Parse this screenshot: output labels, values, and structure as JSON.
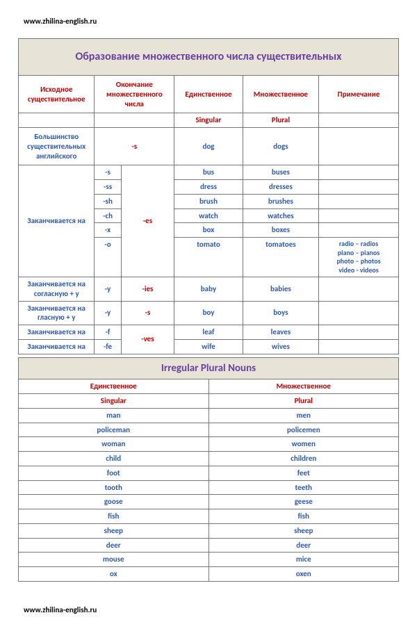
{
  "url": "www.zhilina-english.ru",
  "main_title": "Образование множественного числа существительных",
  "headers": {
    "source": "Исходное существительное",
    "ending": "Окончание множественного числа",
    "singular_ru": "Единственное",
    "plural_ru": "Множественное",
    "note": "Примечание",
    "singular_en": "Singular",
    "plural_en": "Plural"
  },
  "r1": {
    "label": "Большинство существительных английского",
    "ending": "-s",
    "sg": "dog",
    "pl": "dogs"
  },
  "es": {
    "label": "Заканчивается на",
    "ending": "-es",
    "s": {
      "suffix": "-s",
      "sg": "bus",
      "pl": "buses"
    },
    "ss": {
      "suffix": "-ss",
      "sg": "dress",
      "pl": "dresses"
    },
    "sh": {
      "suffix": "-sh",
      "sg": "brush",
      "pl": "brushes"
    },
    "ch": {
      "suffix": "-ch",
      "sg": "watch",
      "pl": "watches"
    },
    "x": {
      "suffix": "-x",
      "sg": "box",
      "pl": "boxes"
    },
    "o": {
      "suffix": "-o",
      "sg": "tomato",
      "pl": "tomatoes",
      "note1": "radio – radios",
      "note2": "piano – pianos",
      "note3": "photo – photos",
      "note4": "video - videos"
    }
  },
  "ies": {
    "label": "Заканчивается на согласную + y",
    "suffix": "-y",
    "ending": "-ies",
    "sg": "baby",
    "pl": "babies"
  },
  "ys": {
    "label": "Заканчивается на гласную + y",
    "suffix": "-y",
    "ending": "-s",
    "sg": "boy",
    "pl": "boys"
  },
  "f": {
    "label": "Заканчивается на",
    "suffix": "-f",
    "ending": "-ves",
    "sg": "leaf",
    "pl": "leaves"
  },
  "fe": {
    "label": "Заканчивается на",
    "suffix": "-fe",
    "sg": "wife",
    "pl": "wives"
  },
  "irr_title": "Irregular Plural Nouns",
  "irr_headers": {
    "sg_ru": "Единственное",
    "pl_ru": "Множественное",
    "sg_en": "Singular",
    "pl_en": "Plural"
  },
  "irr": [
    {
      "sg": "man",
      "pl": "men"
    },
    {
      "sg": "policeman",
      "pl": "policemen"
    },
    {
      "sg": "woman",
      "pl": "women"
    },
    {
      "sg": "child",
      "pl": "children"
    },
    {
      "sg": "foot",
      "pl": "feet"
    },
    {
      "sg": "tooth",
      "pl": "teeth"
    },
    {
      "sg": "goose",
      "pl": "geese"
    },
    {
      "sg": "fish",
      "pl": "fish"
    },
    {
      "sg": "sheep",
      "pl": "sheep"
    },
    {
      "sg": "deer",
      "pl": "deer"
    },
    {
      "sg": "mouse",
      "pl": "mice"
    },
    {
      "sg": "ox",
      "pl": "oxen"
    }
  ]
}
